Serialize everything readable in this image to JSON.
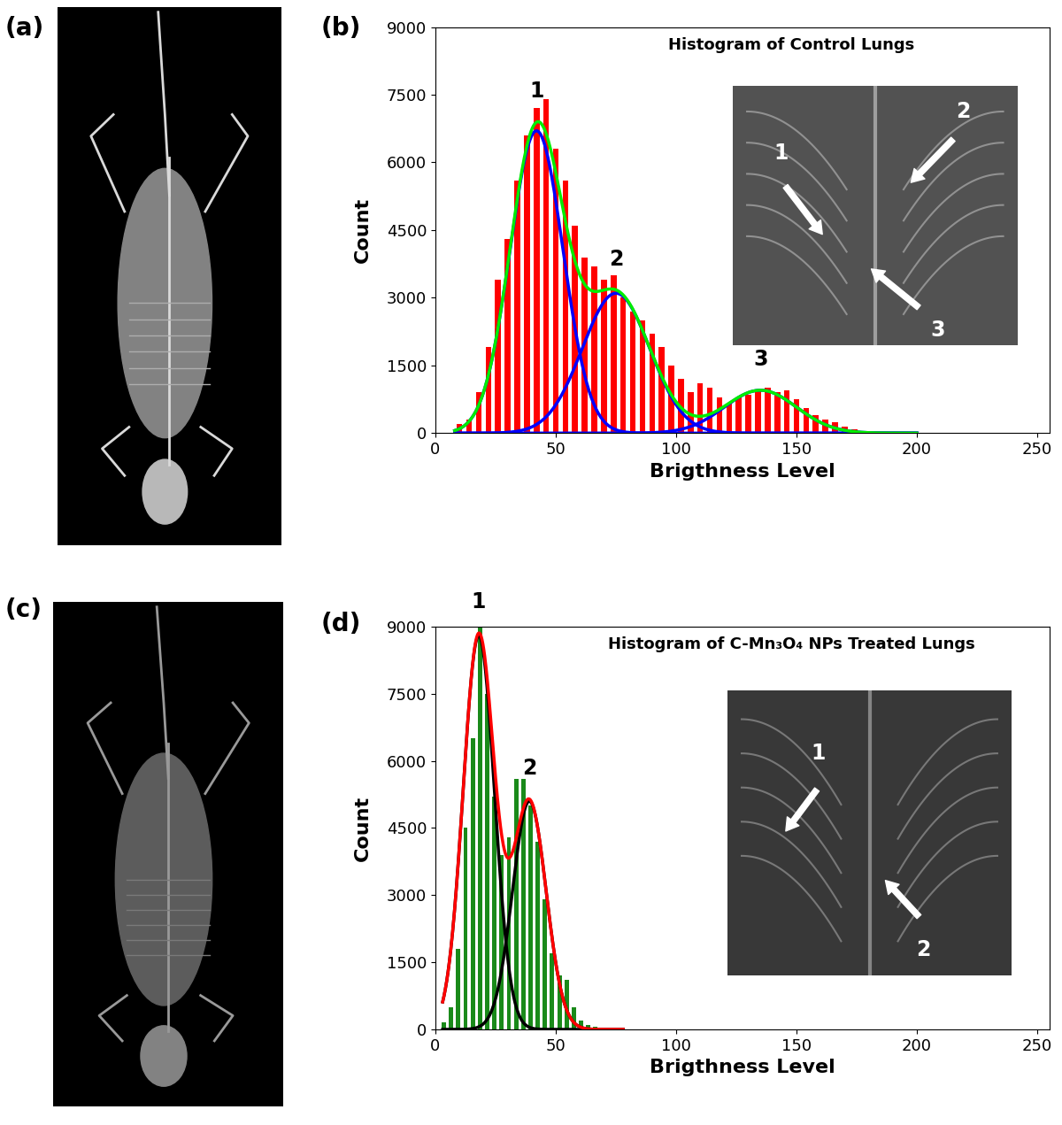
{
  "panel_labels": [
    "(a)",
    "(b)",
    "(c)",
    "(d)"
  ],
  "chart_data": [
    {
      "type": "histogram",
      "title": "Histogram of Control Lungs",
      "x_label": "Brigthness Level",
      "y_label": "Count",
      "bins": [
        8,
        12,
        16,
        20,
        24,
        28,
        32,
        36,
        40,
        44,
        48,
        52,
        56,
        60,
        64,
        68,
        72,
        76,
        80,
        84,
        88,
        92,
        96,
        100,
        104,
        108,
        112,
        116,
        120,
        124,
        128,
        132,
        136,
        140,
        144,
        148,
        152,
        156,
        160,
        164,
        168,
        172,
        176,
        180,
        184,
        188,
        192,
        196,
        200
      ],
      "counts": [
        200,
        300,
        900,
        1900,
        3400,
        4300,
        5600,
        6600,
        7200,
        7400,
        6300,
        5600,
        4600,
        3900,
        3700,
        3400,
        3500,
        3000,
        2700,
        2500,
        2200,
        1900,
        1500,
        1200,
        900,
        1100,
        1000,
        800,
        650,
        800,
        850,
        950,
        1000,
        900,
        950,
        750,
        550,
        400,
        300,
        250,
        150,
        80,
        50,
        30,
        20,
        15,
        10,
        5
      ],
      "color": "#ff0000",
      "xlim": [
        0,
        255
      ],
      "xticks": [
        0,
        50,
        100,
        150,
        200,
        250
      ],
      "ylim": [
        0,
        9000
      ],
      "yticks": [
        0,
        1500,
        3000,
        4500,
        6000,
        7500,
        9000
      ],
      "fit": {
        "color": "#00ee00",
        "range": [
          8,
          200
        ]
      },
      "fit_components": [
        {
          "label": "1",
          "center": 42,
          "amplitude": 6700,
          "sigma": 11,
          "color": "#0000ff"
        },
        {
          "label": "2",
          "center": 75,
          "amplitude": 3100,
          "sigma": 14,
          "color": "#0000ff"
        },
        {
          "label": "3",
          "center": 135,
          "amplitude": 950,
          "sigma": 15,
          "color": "#0000ff"
        }
      ],
      "inset": {
        "arrow_labels": [
          "1",
          "2",
          "3"
        ]
      }
    },
    {
      "type": "histogram",
      "title": "Histogram of C-Mn₃O₄ NPs Treated Lungs",
      "x_label": "Brigthness Level",
      "y_label": "Count",
      "bins": [
        2,
        5,
        8,
        11,
        14,
        17,
        20,
        23,
        26,
        29,
        32,
        35,
        38,
        41,
        44,
        47,
        50,
        53,
        56,
        59,
        62,
        65,
        68
      ],
      "counts": [
        150,
        500,
        1800,
        4500,
        6500,
        9000,
        7500,
        5200,
        3900,
        4300,
        5600,
        5600,
        5000,
        4200,
        2900,
        1700,
        1200,
        1100,
        500,
        200,
        100,
        50
      ],
      "color": "#1a8a1a",
      "xlim": [
        0,
        255
      ],
      "xticks": [
        0,
        50,
        100,
        150,
        200,
        250
      ],
      "ylim": [
        0,
        9000
      ],
      "yticks": [
        0,
        1500,
        3000,
        4500,
        6000,
        7500,
        9000
      ],
      "fit": {
        "color": "#ff0000",
        "range": [
          3,
          78
        ]
      },
      "fit_components": [
        {
          "label": "1",
          "center": 18,
          "amplitude": 8800,
          "sigma": 6.5,
          "color": "#000000"
        },
        {
          "label": "2",
          "center": 39,
          "amplitude": 5100,
          "sigma": 7,
          "color": "#000000"
        }
      ],
      "inset": {
        "arrow_labels": [
          "1",
          "2"
        ]
      }
    }
  ]
}
